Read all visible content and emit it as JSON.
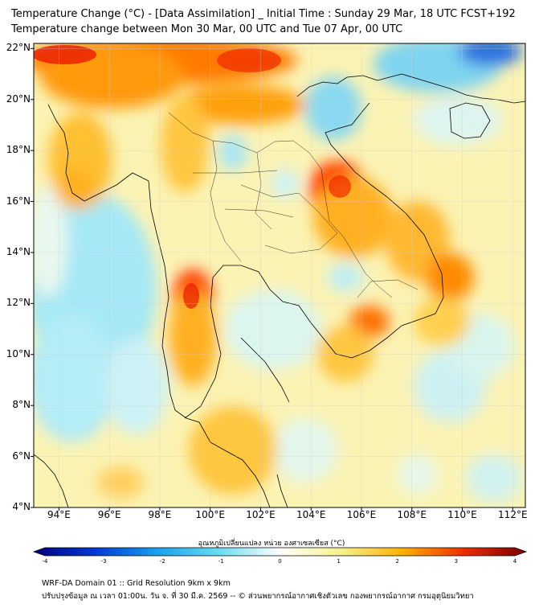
{
  "header": {
    "title_line1": "Temperature Change (°C) - [Data Assimilation] _ Initial Time : Sunday 29 Mar, 18 UTC FCST+192",
    "title_line2": "Temperature change between Mon 30 Mar, 00 UTC and Tue 07 Apr, 00 UTC"
  },
  "map": {
    "lat_labels": [
      {
        "value": 22,
        "label": "22°N"
      },
      {
        "value": 20,
        "label": "20°N"
      },
      {
        "value": 18,
        "label": "18°N"
      },
      {
        "value": 16,
        "label": "16°N"
      },
      {
        "value": 14,
        "label": "14°N"
      },
      {
        "value": 12,
        "label": "12°N"
      },
      {
        "value": 10,
        "label": "10°N"
      },
      {
        "value": 8,
        "label": "8°N"
      },
      {
        "value": 6,
        "label": "6°N"
      },
      {
        "value": 4,
        "label": "4°N"
      }
    ],
    "lon_labels": [
      {
        "value": 94,
        "label": "94°E"
      },
      {
        "value": 96,
        "label": "96°E"
      },
      {
        "value": 98,
        "label": "98°E"
      },
      {
        "value": 100,
        "label": "100°E"
      },
      {
        "value": 102,
        "label": "102°E"
      },
      {
        "value": 104,
        "label": "104°E"
      },
      {
        "value": 106,
        "label": "106°E"
      },
      {
        "value": 108,
        "label": "108°E"
      },
      {
        "value": 110,
        "label": "110°E"
      },
      {
        "value": 112,
        "label": "112°E"
      }
    ],
    "lat_range": [
      4,
      22.2
    ],
    "lon_range": [
      93,
      112.5
    ],
    "grid": true
  },
  "colorbar": {
    "title": "อุณหภูมิเปลี่ยนแปลง หน่วย องศาเซลเซียส (°C)",
    "ticks": [
      "-4",
      "-3",
      "-2",
      "-1",
      "0",
      "1",
      "2",
      "3",
      "4"
    ],
    "range": [
      -4,
      4
    ],
    "colors": [
      "#00007a",
      "#0038d8",
      "#1aa0ee",
      "#66dcf2",
      "#ffffff",
      "#f6f28a",
      "#ffb000",
      "#ee2a00",
      "#780000"
    ]
  },
  "footer": {
    "line1": "WRF-DA Domain 01 :: Grid Resolution 9km x 9km",
    "line2": "ปรับปรุงข้อมูล ณ เวลา 01:00น. วัน จ. ที่ 30 มี.ค. 2569 -- © ส่วนพยากรณ์อากาศเชิงตัวเลข กองพยากรณ์อากาศ กรมอุตุนิยมวิทยา"
  }
}
